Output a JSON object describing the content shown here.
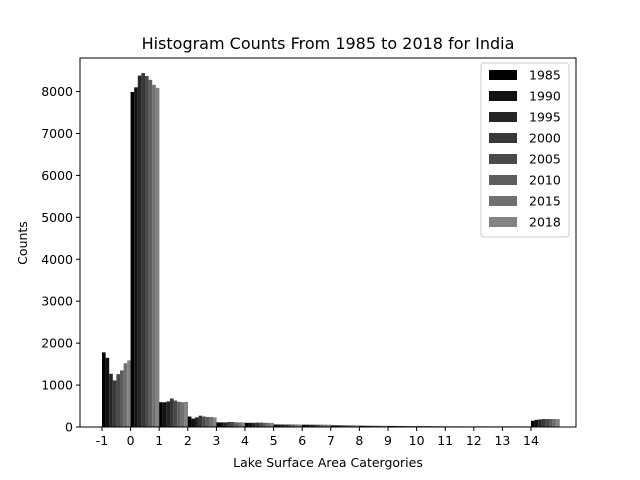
{
  "chart_data": {
    "type": "bar",
    "title": "Histogram Counts From 1985 to 2018 for India",
    "xlabel": "Lake Surface Area Catergories",
    "ylabel": "Counts",
    "categories": [
      "-1",
      "0",
      "1",
      "2",
      "3",
      "4",
      "5",
      "6",
      "7",
      "8",
      "9",
      "10",
      "11",
      "12",
      "13",
      "14"
    ],
    "ylim": [
      0,
      8800
    ],
    "yticks": [
      0,
      1000,
      2000,
      3000,
      4000,
      5000,
      6000,
      7000,
      8000
    ],
    "grid": false,
    "legend_position": "top-right",
    "series": [
      {
        "name": "1985",
        "color": "#000000",
        "values": [
          1780,
          7990,
          590,
          250,
          110,
          100,
          60,
          55,
          40,
          30,
          25,
          20,
          15,
          15,
          15,
          150
        ]
      },
      {
        "name": "1990",
        "color": "#121212",
        "values": [
          1650,
          8100,
          590,
          200,
          110,
          100,
          60,
          55,
          40,
          30,
          25,
          20,
          15,
          15,
          15,
          170
        ]
      },
      {
        "name": "1995",
        "color": "#252525",
        "values": [
          1270,
          8380,
          610,
          230,
          110,
          100,
          60,
          55,
          40,
          30,
          25,
          20,
          15,
          15,
          15,
          180
        ]
      },
      {
        "name": "2000",
        "color": "#383838",
        "values": [
          1110,
          8440,
          680,
          270,
          120,
          105,
          60,
          55,
          40,
          30,
          25,
          20,
          15,
          15,
          15,
          190
        ]
      },
      {
        "name": "2005",
        "color": "#4a4a4a",
        "values": [
          1260,
          8370,
          630,
          250,
          120,
          105,
          60,
          55,
          40,
          30,
          25,
          20,
          15,
          15,
          15,
          190
        ]
      },
      {
        "name": "2010",
        "color": "#5d5d5d",
        "values": [
          1350,
          8280,
          600,
          240,
          110,
          100,
          60,
          55,
          40,
          30,
          25,
          20,
          15,
          15,
          15,
          190
        ]
      },
      {
        "name": "2015",
        "color": "#707070",
        "values": [
          1520,
          8160,
          590,
          240,
          110,
          100,
          60,
          55,
          40,
          30,
          25,
          20,
          15,
          15,
          15,
          190
        ]
      },
      {
        "name": "2018",
        "color": "#838383",
        "values": [
          1590,
          8090,
          600,
          230,
          110,
          100,
          60,
          55,
          40,
          30,
          25,
          20,
          15,
          15,
          15,
          190
        ]
      }
    ]
  }
}
